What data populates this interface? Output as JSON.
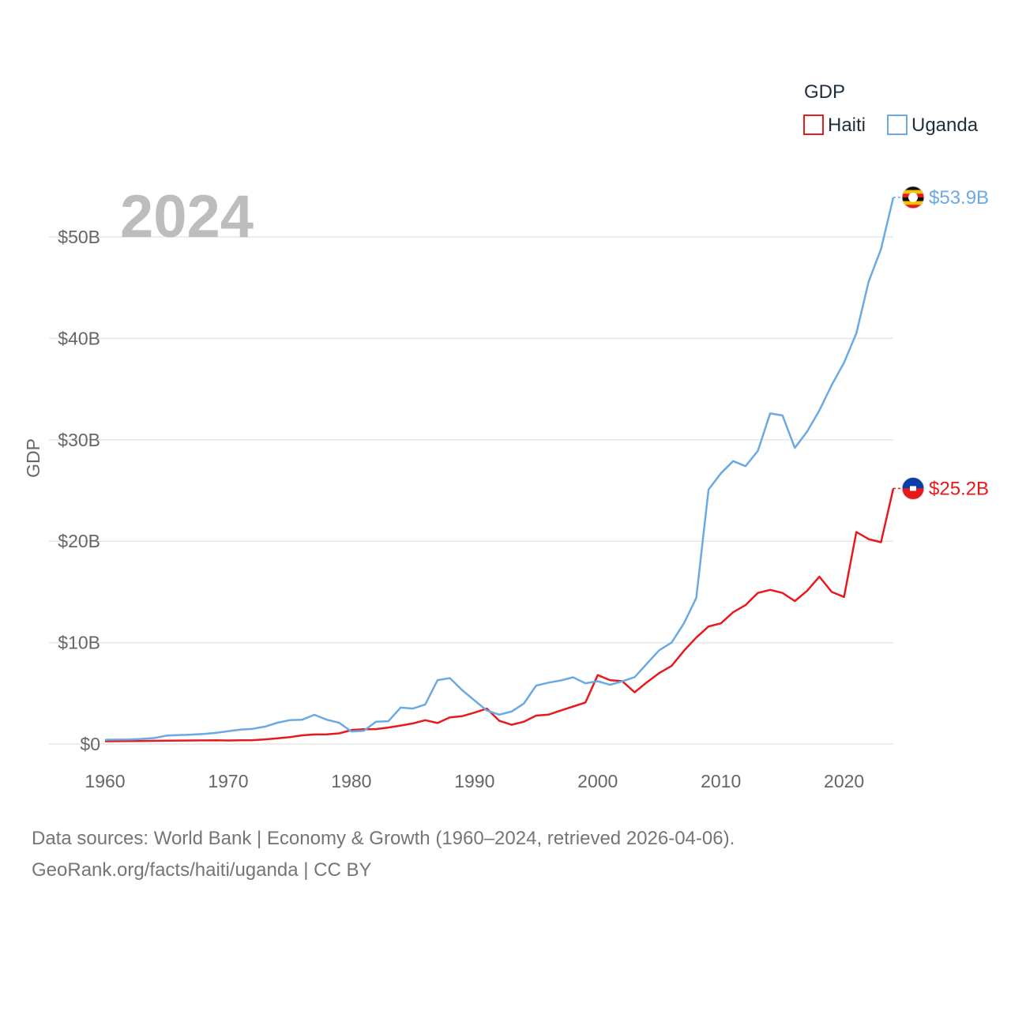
{
  "chart_data": {
    "type": "line",
    "title": "",
    "year_label": "2024",
    "xlabel": "",
    "ylabel": "GDP",
    "xlim": [
      1960,
      2024
    ],
    "ylim": [
      0,
      55
    ],
    "x_ticks": [
      "1960",
      "1970",
      "1980",
      "1990",
      "2000",
      "2010",
      "2020"
    ],
    "y_ticks": [
      "$0",
      "$10B",
      "$20B",
      "$30B",
      "$40B",
      "$50B"
    ],
    "y_tick_values": [
      0,
      10,
      20,
      30,
      40,
      50
    ],
    "x_tick_values": [
      1960,
      1970,
      1980,
      1990,
      2000,
      2010,
      2020
    ],
    "legend": {
      "title": "GDP",
      "position": "top-right"
    },
    "x": [
      1960,
      1961,
      1962,
      1963,
      1964,
      1965,
      1966,
      1967,
      1968,
      1969,
      1970,
      1971,
      1972,
      1973,
      1974,
      1975,
      1976,
      1977,
      1978,
      1979,
      1980,
      1981,
      1982,
      1983,
      1984,
      1985,
      1986,
      1987,
      1988,
      1989,
      1990,
      1991,
      1992,
      1993,
      1994,
      1995,
      1996,
      1997,
      1998,
      1999,
      2000,
      2001,
      2002,
      2003,
      2004,
      2005,
      2006,
      2007,
      2008,
      2009,
      2010,
      2011,
      2012,
      2013,
      2014,
      2015,
      2016,
      2017,
      2018,
      2019,
      2020,
      2021,
      2022,
      2023,
      2024
    ],
    "series": [
      {
        "name": "Haiti",
        "color": "#e8191c",
        "end_label": "$25.2B",
        "values": [
          0.27,
          0.28,
          0.29,
          0.3,
          0.32,
          0.33,
          0.34,
          0.35,
          0.36,
          0.37,
          0.35,
          0.37,
          0.38,
          0.46,
          0.56,
          0.68,
          0.86,
          0.94,
          0.96,
          1.05,
          1.38,
          1.46,
          1.47,
          1.63,
          1.82,
          2.03,
          2.35,
          2.07,
          2.63,
          2.75,
          3.1,
          3.5,
          2.3,
          1.9,
          2.2,
          2.8,
          2.9,
          3.3,
          3.7,
          4.1,
          6.8,
          6.3,
          6.2,
          5.1,
          6.1,
          7.0,
          7.7,
          9.2,
          10.5,
          11.6,
          11.9,
          13.0,
          13.7,
          14.9,
          15.2,
          14.9,
          14.1,
          15.1,
          16.5,
          15.0,
          14.5,
          20.9,
          20.2,
          19.9,
          25.2
        ]
      },
      {
        "name": "Uganda",
        "color": "#6aaae4",
        "end_label": "$53.9B",
        "values": [
          0.42,
          0.44,
          0.45,
          0.51,
          0.59,
          0.83,
          0.89,
          0.93,
          1.0,
          1.1,
          1.26,
          1.42,
          1.5,
          1.72,
          2.1,
          2.35,
          2.4,
          2.88,
          2.4,
          2.1,
          1.24,
          1.3,
          2.2,
          2.25,
          3.6,
          3.5,
          3.9,
          6.3,
          6.5,
          5.3,
          4.3,
          3.3,
          2.9,
          3.2,
          3.99,
          5.76,
          6.05,
          6.27,
          6.58,
          5.99,
          6.19,
          5.84,
          6.18,
          6.6,
          7.94,
          9.25,
          10.0,
          11.9,
          14.4,
          25.1,
          26.7,
          27.9,
          27.4,
          28.9,
          32.6,
          32.4,
          29.2,
          30.8,
          32.9,
          35.4,
          37.6,
          40.5,
          45.6,
          48.8,
          53.9
        ]
      }
    ]
  },
  "source": {
    "line1": "Data sources: World Bank | Economy & Growth (1960–2024, retrieved 2026-04-06).",
    "line2": "GeoRank.org/facts/haiti/uganda | CC BY"
  }
}
